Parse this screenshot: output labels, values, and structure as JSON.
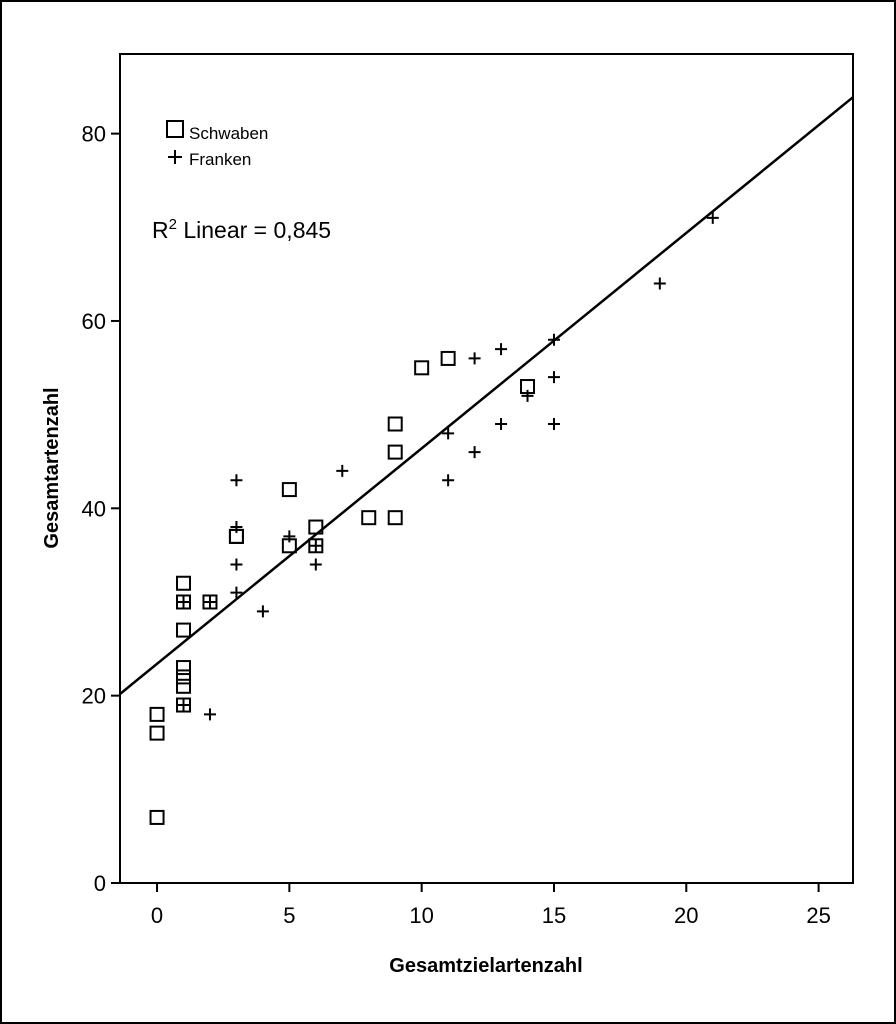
{
  "chart_data": {
    "type": "scatter",
    "xlabel": "Gesamtzielartenzahl",
    "ylabel": "Gesamtartenzahl",
    "xlim": [
      -1.4,
      26.3
    ],
    "ylim": [
      0,
      88.5
    ],
    "xticks": [
      0,
      5,
      10,
      15,
      20,
      25
    ],
    "yticks": [
      0,
      20,
      40,
      60,
      80
    ],
    "grid": false,
    "legend_position": "top-left",
    "series": [
      {
        "name": "Schwaben",
        "marker": "square",
        "points": [
          [
            0,
            7
          ],
          [
            0,
            16
          ],
          [
            0,
            18
          ],
          [
            1,
            21
          ],
          [
            1,
            22
          ],
          [
            1,
            23
          ],
          [
            1,
            27
          ],
          [
            1,
            30
          ],
          [
            1,
            32
          ],
          [
            1,
            19
          ],
          [
            2,
            30
          ],
          [
            3,
            37
          ],
          [
            3,
            37
          ],
          [
            5,
            42
          ],
          [
            5,
            36
          ],
          [
            6,
            38
          ],
          [
            6,
            36
          ],
          [
            8,
            39
          ],
          [
            9,
            39
          ],
          [
            9,
            46
          ],
          [
            9,
            49
          ],
          [
            10,
            55
          ],
          [
            11,
            56
          ],
          [
            14,
            53
          ]
        ]
      },
      {
        "name": "Franken",
        "marker": "plus",
        "points": [
          [
            1,
            19
          ],
          [
            1,
            30
          ],
          [
            2,
            18
          ],
          [
            2,
            30
          ],
          [
            3,
            31
          ],
          [
            3,
            34
          ],
          [
            3,
            38
          ],
          [
            3,
            43
          ],
          [
            4,
            29
          ],
          [
            5,
            37
          ],
          [
            6,
            34
          ],
          [
            6,
            36
          ],
          [
            7,
            44
          ],
          [
            11,
            43
          ],
          [
            11,
            48
          ],
          [
            12,
            46
          ],
          [
            12,
            56
          ],
          [
            13,
            49
          ],
          [
            13,
            57
          ],
          [
            14,
            52
          ],
          [
            15,
            49
          ],
          [
            15,
            54
          ],
          [
            15,
            58
          ],
          [
            19,
            64
          ],
          [
            21,
            71
          ]
        ]
      }
    ],
    "fit_line": {
      "type": "linear",
      "intercept": 23.4,
      "slope": 2.3
    },
    "annotation": {
      "prefix": "R",
      "sup": "2",
      "text": " Linear = 0,845"
    }
  }
}
